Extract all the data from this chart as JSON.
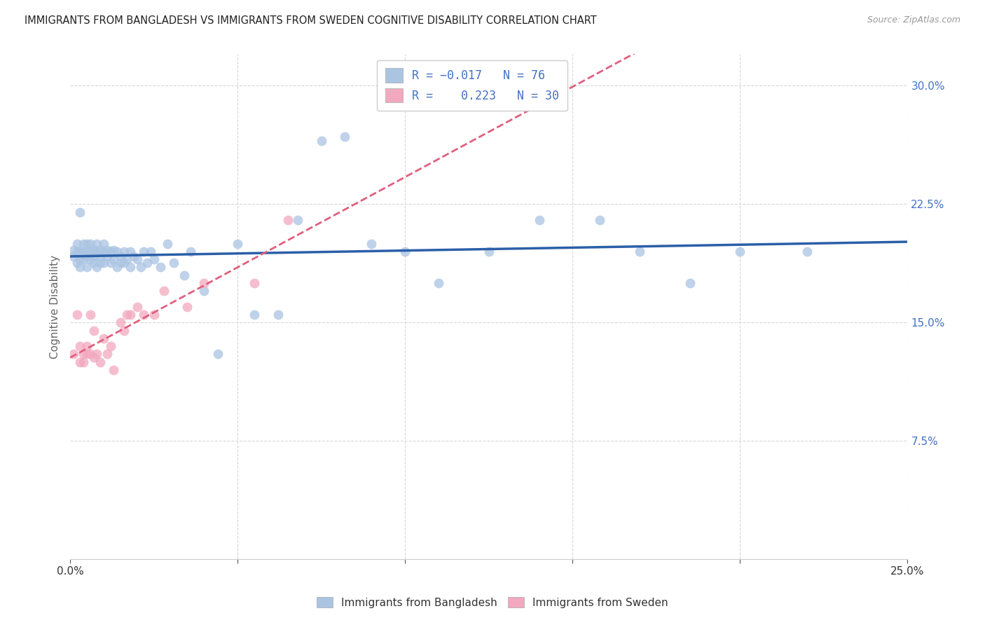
{
  "title": "IMMIGRANTS FROM BANGLADESH VS IMMIGRANTS FROM SWEDEN COGNITIVE DISABILITY CORRELATION CHART",
  "source": "Source: ZipAtlas.com",
  "ylabel": "Cognitive Disability",
  "ytick_labels": [
    "30.0%",
    "22.5%",
    "15.0%",
    "7.5%"
  ],
  "ytick_values": [
    0.3,
    0.225,
    0.15,
    0.075
  ],
  "xlim": [
    0.0,
    0.25
  ],
  "ylim": [
    0.0,
    0.32
  ],
  "legend_bottom1": "Immigrants from Bangladesh",
  "legend_bottom2": "Immigrants from Sweden",
  "color_bangladesh": "#aac4e2",
  "color_sweden": "#f2a8bf",
  "line_color_bangladesh": "#2b5fa8",
  "line_color_sweden": "#e0607e",
  "background_color": "#ffffff",
  "grid_color": "#d8d8d8",
  "bang_x": [
    0.001,
    0.001,
    0.002,
    0.002,
    0.002,
    0.003,
    0.003,
    0.003,
    0.003,
    0.004,
    0.004,
    0.004,
    0.005,
    0.005,
    0.005,
    0.005,
    0.006,
    0.006,
    0.006,
    0.007,
    0.007,
    0.007,
    0.008,
    0.008,
    0.008,
    0.009,
    0.009,
    0.009,
    0.01,
    0.01,
    0.01,
    0.011,
    0.011,
    0.012,
    0.012,
    0.013,
    0.013,
    0.014,
    0.014,
    0.015,
    0.015,
    0.016,
    0.016,
    0.017,
    0.018,
    0.018,
    0.019,
    0.02,
    0.021,
    0.022,
    0.023,
    0.024,
    0.025,
    0.027,
    0.029,
    0.031,
    0.034,
    0.036,
    0.04,
    0.044,
    0.05,
    0.055,
    0.062,
    0.068,
    0.075,
    0.082,
    0.09,
    0.1,
    0.11,
    0.125,
    0.14,
    0.158,
    0.17,
    0.185,
    0.2,
    0.22
  ],
  "bang_y": [
    0.192,
    0.196,
    0.188,
    0.195,
    0.2,
    0.22,
    0.195,
    0.19,
    0.185,
    0.2,
    0.195,
    0.19,
    0.195,
    0.2,
    0.185,
    0.192,
    0.195,
    0.19,
    0.2,
    0.192,
    0.196,
    0.188,
    0.195,
    0.2,
    0.185,
    0.192,
    0.196,
    0.188,
    0.195,
    0.188,
    0.2,
    0.192,
    0.196,
    0.188,
    0.195,
    0.196,
    0.19,
    0.185,
    0.195,
    0.188,
    0.192,
    0.188,
    0.195,
    0.19,
    0.185,
    0.195,
    0.192,
    0.19,
    0.185,
    0.195,
    0.188,
    0.195,
    0.19,
    0.185,
    0.2,
    0.188,
    0.18,
    0.195,
    0.17,
    0.13,
    0.2,
    0.155,
    0.155,
    0.215,
    0.265,
    0.268,
    0.2,
    0.195,
    0.175,
    0.195,
    0.215,
    0.215,
    0.195,
    0.175,
    0.195,
    0.195
  ],
  "swe_x": [
    0.001,
    0.002,
    0.003,
    0.003,
    0.004,
    0.004,
    0.005,
    0.005,
    0.006,
    0.006,
    0.007,
    0.007,
    0.008,
    0.009,
    0.01,
    0.011,
    0.012,
    0.013,
    0.015,
    0.016,
    0.017,
    0.018,
    0.02,
    0.022,
    0.025,
    0.028,
    0.035,
    0.04,
    0.055,
    0.065
  ],
  "swe_y": [
    0.13,
    0.155,
    0.125,
    0.135,
    0.125,
    0.13,
    0.13,
    0.135,
    0.13,
    0.155,
    0.128,
    0.145,
    0.13,
    0.125,
    0.14,
    0.13,
    0.135,
    0.12,
    0.15,
    0.145,
    0.155,
    0.155,
    0.16,
    0.155,
    0.155,
    0.17,
    0.16,
    0.175,
    0.175,
    0.215
  ]
}
